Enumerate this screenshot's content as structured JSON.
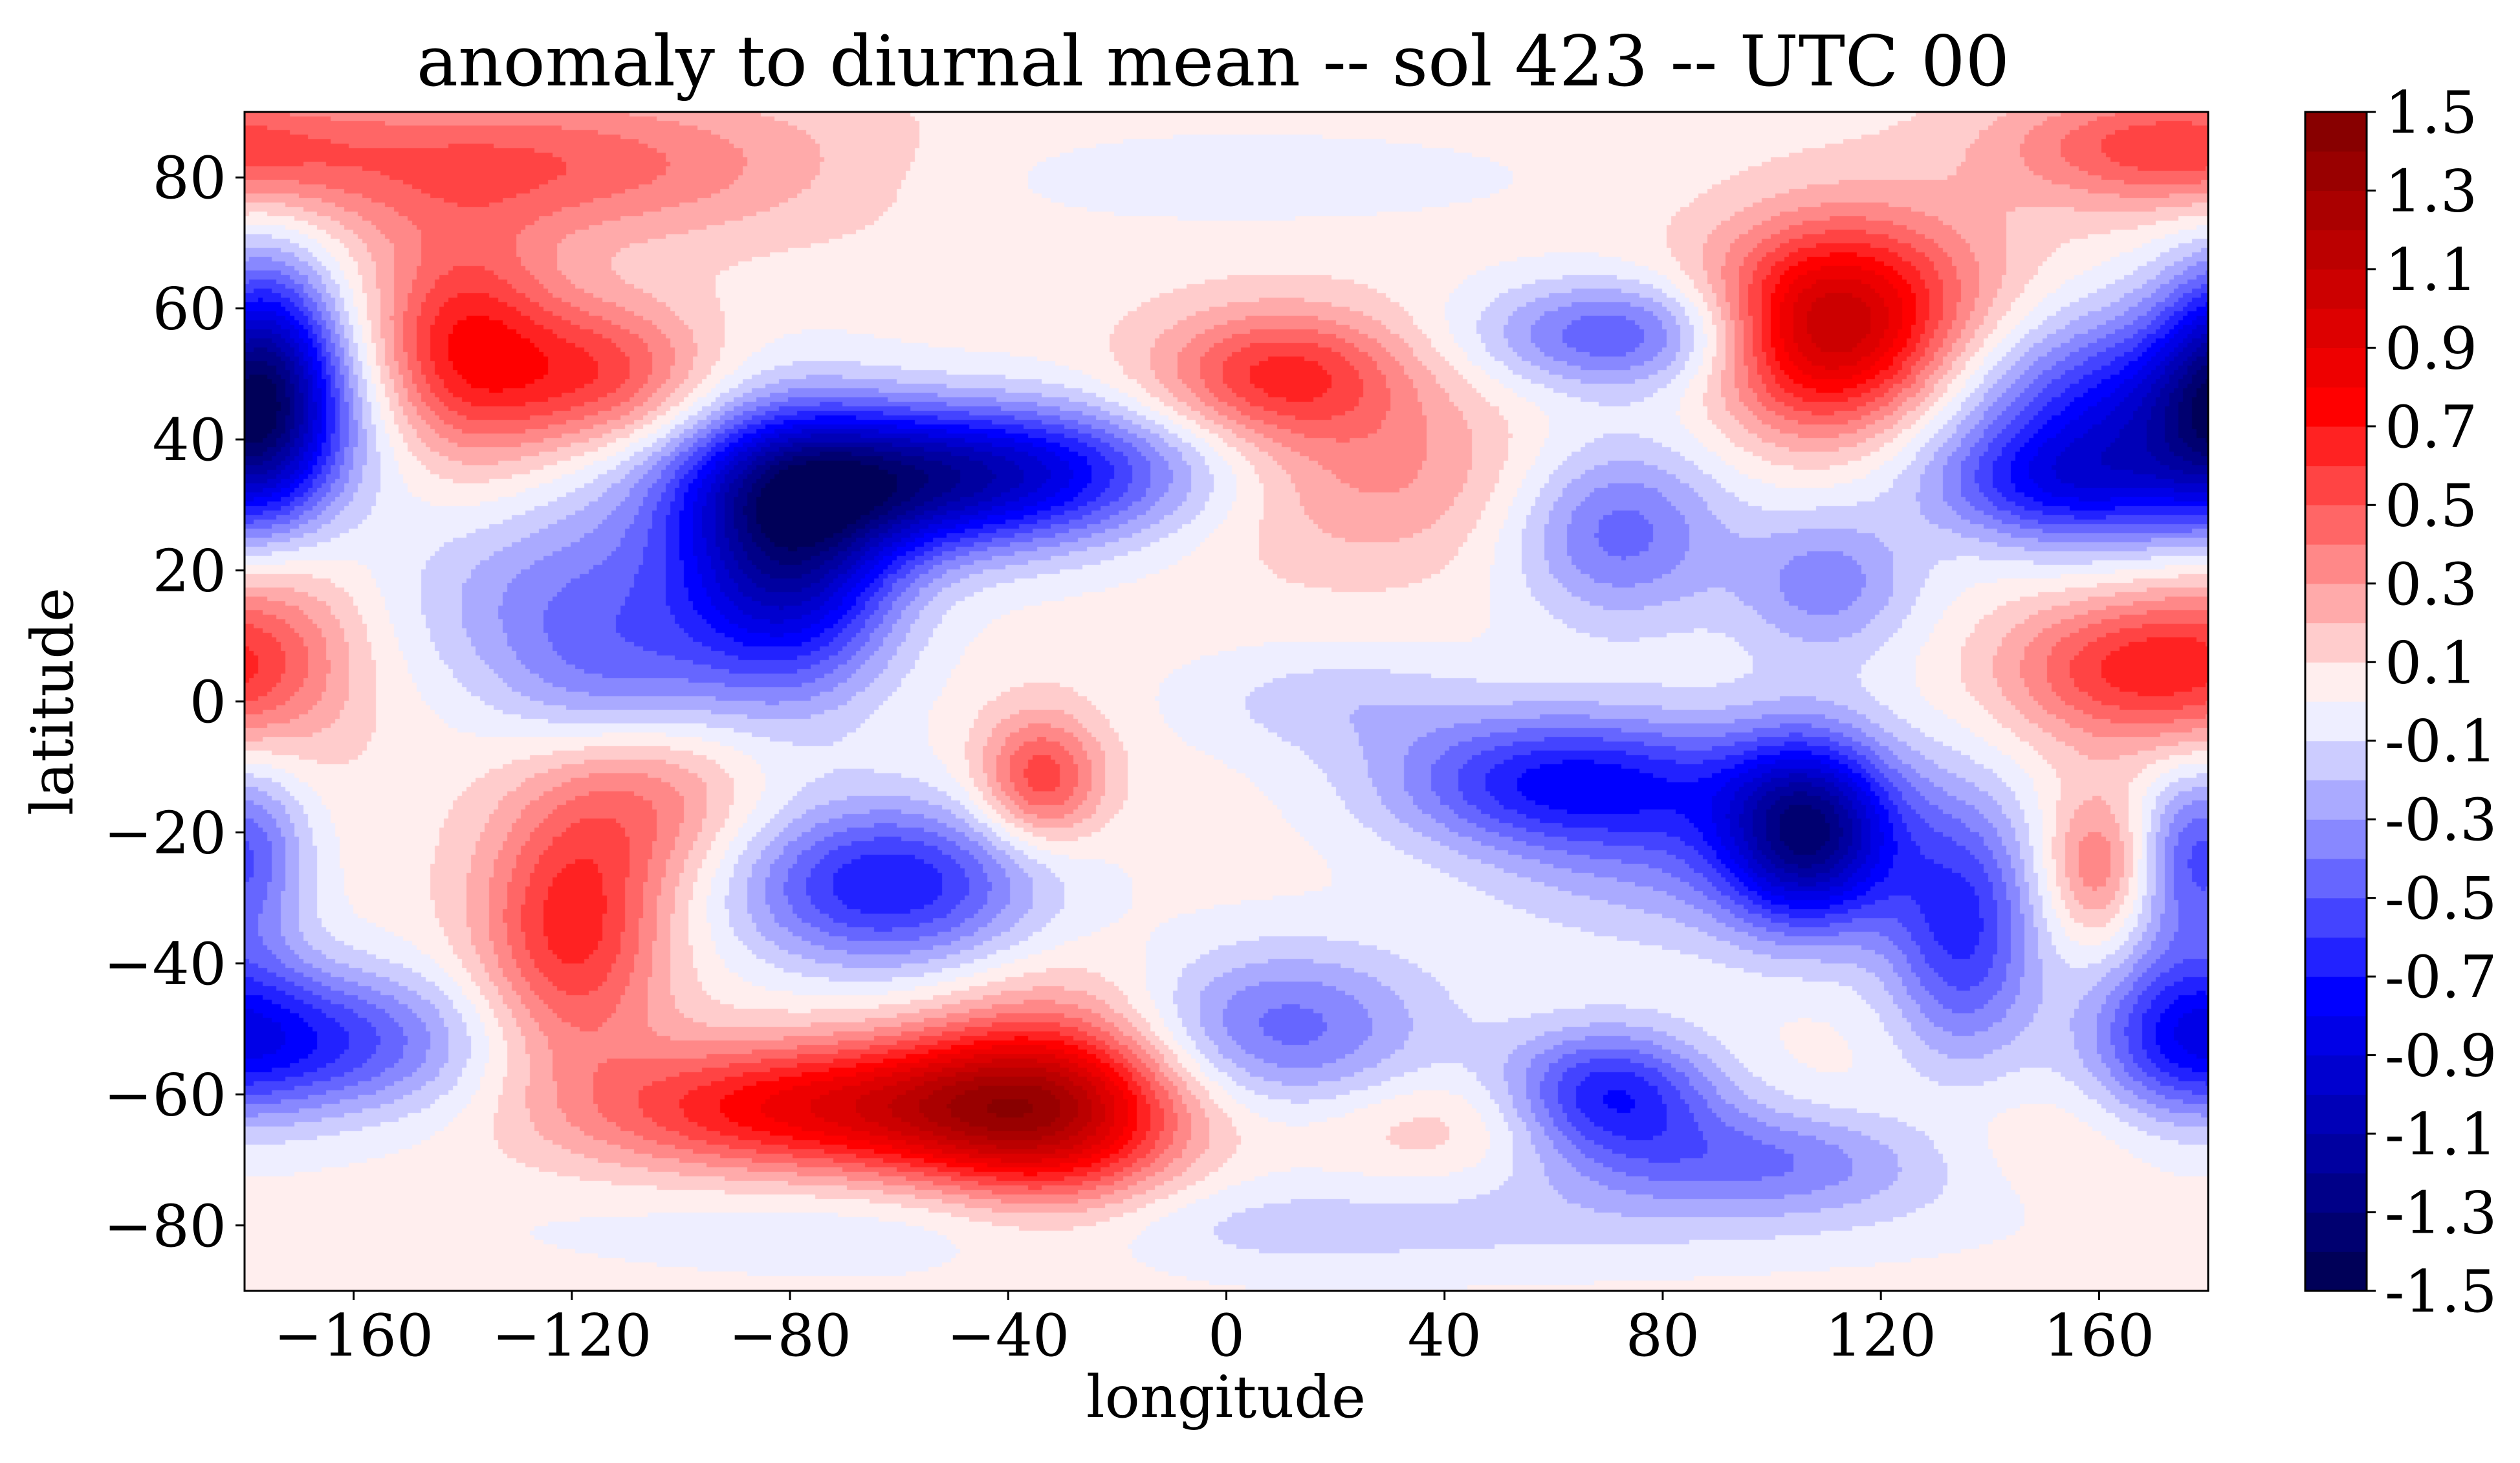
{
  "chart_data": {
    "type": "heatmap",
    "subtype": "filled-contour",
    "title": "anomaly to diurnal mean -- sol 423 -- UTC 00",
    "xlabel": "longitude",
    "ylabel": "latitude",
    "xlim": [
      -180,
      180
    ],
    "ylim": [
      -90,
      90
    ],
    "xticks": [
      -160,
      -120,
      -80,
      -40,
      0,
      40,
      80,
      120,
      160
    ],
    "xtick_labels": [
      "−160",
      "−120",
      "−80",
      "−40",
      "0",
      "40",
      "80",
      "120",
      "160"
    ],
    "yticks": [
      80,
      60,
      40,
      20,
      0,
      -20,
      -40,
      -60,
      -80
    ],
    "ytick_labels": [
      "80",
      "60",
      "40",
      "20",
      "0",
      "−20",
      "−40",
      "−60",
      "−80"
    ],
    "colorbar": {
      "cmap": "seismic",
      "vmin": -1.5,
      "vmax": 1.5,
      "levels": 30,
      "tick_values": [
        1.5,
        1.3,
        1.1,
        0.9,
        0.7,
        0.5,
        0.3,
        0.1,
        -0.1,
        -0.3,
        -0.5,
        -0.7,
        -0.9,
        -1.1,
        -1.3,
        -1.5
      ],
      "tick_labels": [
        "1.5",
        "1.3",
        "1.1",
        "0.9",
        "0.7",
        "0.5",
        "0.3",
        "0.1",
        "-0.1",
        "-0.3",
        "-0.5",
        "-0.7",
        "-0.9",
        "-1.1",
        "-1.3",
        "-1.5"
      ]
    },
    "features": [
      {
        "lon": -80,
        "lat": 22,
        "amp": -1.05,
        "sx": 14,
        "sy": 14
      },
      {
        "lon": -60,
        "lat": 33,
        "amp": -0.8,
        "sx": 28,
        "sy": 8
      },
      {
        "lon": -40,
        "lat": 36,
        "amp": -0.5,
        "sx": 30,
        "sy": 7
      },
      {
        "lon": -176,
        "lat": 48,
        "amp": -0.9,
        "sx": 9,
        "sy": 14
      },
      {
        "lon": -118,
        "lat": 16,
        "amp": -0.4,
        "sx": 22,
        "sy": 10
      },
      {
        "lon": -112,
        "lat": 2,
        "amp": -0.3,
        "sx": 16,
        "sy": 8
      },
      {
        "lon": 72,
        "lat": 56,
        "amp": -0.55,
        "sx": 18,
        "sy": 6
      },
      {
        "lon": 72,
        "lat": 26,
        "amp": -0.5,
        "sx": 14,
        "sy": 10
      },
      {
        "lon": 110,
        "lat": 18,
        "amp": -0.4,
        "sx": 12,
        "sy": 8
      },
      {
        "lon": 168,
        "lat": 42,
        "amp": -0.9,
        "sx": 22,
        "sy": 12
      },
      {
        "lon": 150,
        "lat": 33,
        "amp": -0.4,
        "sx": 16,
        "sy": 6
      },
      {
        "lon": 60,
        "lat": -12,
        "amp": -0.6,
        "sx": 22,
        "sy": 7
      },
      {
        "lon": 107,
        "lat": -20,
        "amp": -1.1,
        "sx": 11,
        "sy": 10
      },
      {
        "lon": 85,
        "lat": -20,
        "amp": -0.4,
        "sx": 28,
        "sy": 12
      },
      {
        "lon": 135,
        "lat": -35,
        "amp": -0.65,
        "sx": 10,
        "sy": 14
      },
      {
        "lon": -62,
        "lat": -28,
        "amp": -0.75,
        "sx": 20,
        "sy": 9
      },
      {
        "lon": 10,
        "lat": -50,
        "amp": -0.5,
        "sx": 20,
        "sy": 9
      },
      {
        "lon": 70,
        "lat": -60,
        "amp": -0.75,
        "sx": 14,
        "sy": 7
      },
      {
        "lon": 100,
        "lat": -70,
        "amp": -0.45,
        "sx": 28,
        "sy": 6
      },
      {
        "lon": -165,
        "lat": -52,
        "amp": -0.6,
        "sx": 20,
        "sy": 8
      },
      {
        "lon": -178,
        "lat": -22,
        "amp": -0.35,
        "sx": 8,
        "sy": 10
      },
      {
        "lon": 175,
        "lat": -50,
        "amp": -0.5,
        "sx": 12,
        "sy": 10
      },
      {
        "lon": 175,
        "lat": -25,
        "amp": -0.3,
        "sx": 8,
        "sy": 10
      },
      {
        "lon": 0,
        "lat": -80,
        "amp": -0.2,
        "sx": 80,
        "sy": 6
      },
      {
        "lon": 0,
        "lat": 80,
        "amp": -0.12,
        "sx": 40,
        "sy": 5
      },
      {
        "lon": 20,
        "lat": 0,
        "amp": -0.2,
        "sx": 20,
        "sy": 6
      },
      {
        "lon": -140,
        "lat": 54,
        "amp": 0.65,
        "sx": 12,
        "sy": 12
      },
      {
        "lon": -115,
        "lat": 50,
        "amp": 0.5,
        "sx": 14,
        "sy": 8
      },
      {
        "lon": -130,
        "lat": 82,
        "amp": 0.45,
        "sx": 40,
        "sy": 8
      },
      {
        "lon": 110,
        "lat": 55,
        "amp": 0.8,
        "sx": 14,
        "sy": 10
      },
      {
        "lon": 118,
        "lat": 63,
        "amp": 0.4,
        "sx": 20,
        "sy": 10
      },
      {
        "lon": 10,
        "lat": 50,
        "amp": 0.55,
        "sx": 16,
        "sy": 7
      },
      {
        "lon": 25,
        "lat": 35,
        "amp": 0.3,
        "sx": 22,
        "sy": 10
      },
      {
        "lon": 165,
        "lat": 5,
        "amp": 0.55,
        "sx": 16,
        "sy": 8
      },
      {
        "lon": 160,
        "lat": -25,
        "amp": 0.4,
        "sx": 7,
        "sy": 8
      },
      {
        "lon": 170,
        "lat": 85,
        "amp": 0.4,
        "sx": 20,
        "sy": 6
      },
      {
        "lon": -40,
        "lat": -62,
        "amp": 0.8,
        "sx": 20,
        "sy": 8
      },
      {
        "lon": -80,
        "lat": -62,
        "amp": 0.7,
        "sx": 26,
        "sy": 7
      },
      {
        "lon": -30,
        "lat": -62,
        "amp": 0.45,
        "sx": 16,
        "sy": 14
      },
      {
        "lon": -34,
        "lat": -12,
        "amp": 0.55,
        "sx": 8,
        "sy": 7
      },
      {
        "lon": -120,
        "lat": -35,
        "amp": 0.6,
        "sx": 12,
        "sy": 14
      },
      {
        "lon": -105,
        "lat": -15,
        "amp": 0.3,
        "sx": 14,
        "sy": 10
      },
      {
        "lon": -175,
        "lat": 10,
        "amp": 0.3,
        "sx": 12,
        "sy": 14
      },
      {
        "lon": 45,
        "lat": -65,
        "amp": 0.2,
        "sx": 20,
        "sy": 6
      },
      {
        "lon": 140,
        "lat": -68,
        "amp": 0.15,
        "sx": 20,
        "sy": 6
      }
    ]
  }
}
